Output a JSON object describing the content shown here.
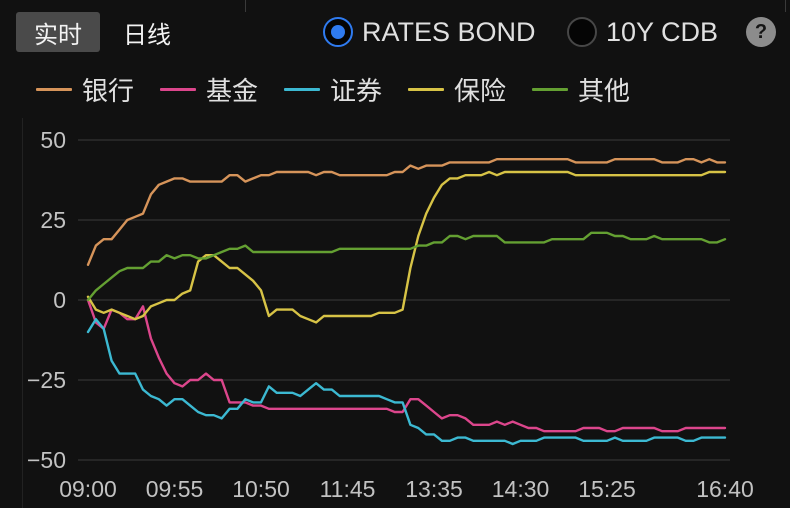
{
  "tabs": [
    {
      "label": "实时",
      "active": true
    },
    {
      "label": "日线",
      "active": false
    }
  ],
  "modes": [
    {
      "label": "RATES BOND",
      "selected": true
    },
    {
      "label": "10Y CDB",
      "selected": false
    }
  ],
  "help": {
    "icon": "question-mark-icon",
    "glyph": "?"
  },
  "colors": {
    "background": "#111111",
    "tab_active": "#4a4a4a",
    "accent": "#2f7bf0",
    "grid": "#2e2e2e",
    "axis_text": "#c2c2c2"
  },
  "chart_data": {
    "type": "line",
    "legend": "top",
    "grid": true,
    "ylim": [
      -50,
      50
    ],
    "yticks": [
      50,
      25,
      0,
      -25,
      -50
    ],
    "ytick_labels": [
      "50",
      "25",
      "0",
      "−25",
      "−50"
    ],
    "xticks": [
      "09:00",
      "09:55",
      "10:50",
      "11:45",
      "13:35",
      "14:30",
      "15:25",
      "16:40"
    ],
    "x": [
      "09:00",
      "09:05",
      "09:10",
      "09:15",
      "09:20",
      "09:25",
      "09:30",
      "09:35",
      "09:40",
      "09:45",
      "09:50",
      "09:55",
      "10:00",
      "10:05",
      "10:10",
      "10:15",
      "10:20",
      "10:25",
      "10:30",
      "10:35",
      "10:40",
      "10:45",
      "10:50",
      "10:55",
      "11:00",
      "11:05",
      "11:10",
      "11:15",
      "11:20",
      "11:25",
      "11:30",
      "11:35",
      "11:40",
      "11:45",
      "11:50",
      "11:55",
      "12:00",
      "13:00",
      "13:05",
      "13:10",
      "13:15",
      "13:20",
      "13:25",
      "13:30",
      "13:35",
      "13:40",
      "13:45",
      "13:50",
      "13:55",
      "14:00",
      "14:05",
      "14:10",
      "14:15",
      "14:20",
      "14:25",
      "14:30",
      "14:35",
      "14:40",
      "14:45",
      "14:50",
      "14:55",
      "15:00",
      "15:05",
      "15:10",
      "15:15",
      "15:20",
      "15:25",
      "15:30",
      "15:35",
      "15:40",
      "15:45",
      "15:50",
      "15:55",
      "16:00",
      "16:05",
      "16:10",
      "16:15",
      "16:20",
      "16:25",
      "16:30",
      "16:35",
      "16:40"
    ],
    "series": [
      {
        "name": "银行",
        "color": "#d6945a",
        "values": [
          11,
          17,
          19,
          19,
          22,
          25,
          26,
          27,
          33,
          36,
          37,
          38,
          38,
          37,
          37,
          37,
          37,
          37,
          39,
          39,
          37,
          38,
          39,
          39,
          40,
          40,
          40,
          40,
          40,
          39,
          40,
          40,
          39,
          39,
          39,
          39,
          39,
          39,
          39,
          40,
          40,
          42,
          41,
          42,
          42,
          42,
          43,
          43,
          43,
          43,
          43,
          43,
          44,
          44,
          44,
          44,
          44,
          44,
          44,
          44,
          44,
          44,
          43,
          43,
          43,
          43,
          43,
          44,
          44,
          44,
          44,
          44,
          44,
          43,
          43,
          43,
          44,
          44,
          43,
          44,
          43,
          43
        ]
      },
      {
        "name": "基金",
        "color": "#dc468c",
        "values": [
          0,
          -7,
          -9,
          -3,
          -4,
          -6,
          -6,
          -2,
          -12,
          -18,
          -23,
          -26,
          -27,
          -25,
          -25,
          -23,
          -25,
          -25,
          -32,
          -32,
          -32,
          -33,
          -33,
          -34,
          -34,
          -34,
          -34,
          -34,
          -34,
          -34,
          -34,
          -34,
          -34,
          -34,
          -34,
          -34,
          -34,
          -34,
          -34,
          -35,
          -35,
          -31,
          -31,
          -33,
          -35,
          -37,
          -36,
          -36,
          -37,
          -39,
          -39,
          -39,
          -38,
          -39,
          -38,
          -39,
          -40,
          -40,
          -41,
          -41,
          -41,
          -41,
          -41,
          -40,
          -40,
          -40,
          -41,
          -41,
          -40,
          -40,
          -40,
          -40,
          -40,
          -41,
          -41,
          -41,
          -40,
          -40,
          -40,
          -40,
          -40,
          -40
        ]
      },
      {
        "name": "证券",
        "color": "#3cb9d2",
        "values": [
          -10,
          -6,
          -9,
          -19,
          -23,
          -23,
          -23,
          -28,
          -30,
          -31,
          -33,
          -31,
          -31,
          -33,
          -35,
          -36,
          -36,
          -37,
          -34,
          -34,
          -31,
          -32,
          -32,
          -27,
          -29,
          -29,
          -29,
          -30,
          -28,
          -26,
          -28,
          -28,
          -30,
          -30,
          -30,
          -30,
          -30,
          -30,
          -31,
          -32,
          -32,
          -39,
          -40,
          -42,
          -42,
          -44,
          -44,
          -43,
          -43,
          -44,
          -44,
          -44,
          -44,
          -44,
          -45,
          -44,
          -44,
          -44,
          -43,
          -43,
          -43,
          -43,
          -43,
          -44,
          -44,
          -44,
          -44,
          -43,
          -44,
          -44,
          -44,
          -44,
          -43,
          -43,
          -43,
          -43,
          -44,
          -44,
          -43,
          -43,
          -43,
          -43
        ]
      },
      {
        "name": "保险",
        "color": "#d7c346",
        "values": [
          1,
          -3,
          -4,
          -3,
          -4,
          -5,
          -6,
          -5,
          -2,
          -1,
          0,
          0,
          2,
          3,
          12,
          14,
          14,
          12,
          10,
          10,
          8,
          6,
          3,
          -5,
          -3,
          -3,
          -3,
          -5,
          -6,
          -7,
          -5,
          -5,
          -5,
          -5,
          -5,
          -5,
          -5,
          -4,
          -4,
          -4,
          -3,
          10,
          20,
          27,
          32,
          36,
          38,
          38,
          39,
          39,
          39,
          40,
          39,
          40,
          40,
          40,
          40,
          40,
          40,
          40,
          40,
          40,
          39,
          39,
          39,
          39,
          39,
          39,
          39,
          39,
          39,
          39,
          39,
          39,
          39,
          39,
          39,
          39,
          39,
          40,
          40,
          40
        ]
      },
      {
        "name": "其他",
        "color": "#64a032",
        "values": [
          0,
          3,
          5,
          7,
          9,
          10,
          10,
          10,
          12,
          12,
          14,
          13,
          14,
          14,
          13,
          13,
          14,
          15,
          16,
          16,
          17,
          15,
          15,
          15,
          15,
          15,
          15,
          15,
          15,
          15,
          15,
          15,
          16,
          16,
          16,
          16,
          16,
          16,
          16,
          16,
          16,
          16,
          17,
          17,
          18,
          18,
          20,
          20,
          19,
          20,
          20,
          20,
          20,
          18,
          18,
          18,
          18,
          18,
          18,
          19,
          19,
          19,
          19,
          19,
          21,
          21,
          21,
          20,
          20,
          19,
          19,
          19,
          20,
          19,
          19,
          19,
          19,
          19,
          19,
          18,
          18,
          19
        ]
      }
    ]
  }
}
